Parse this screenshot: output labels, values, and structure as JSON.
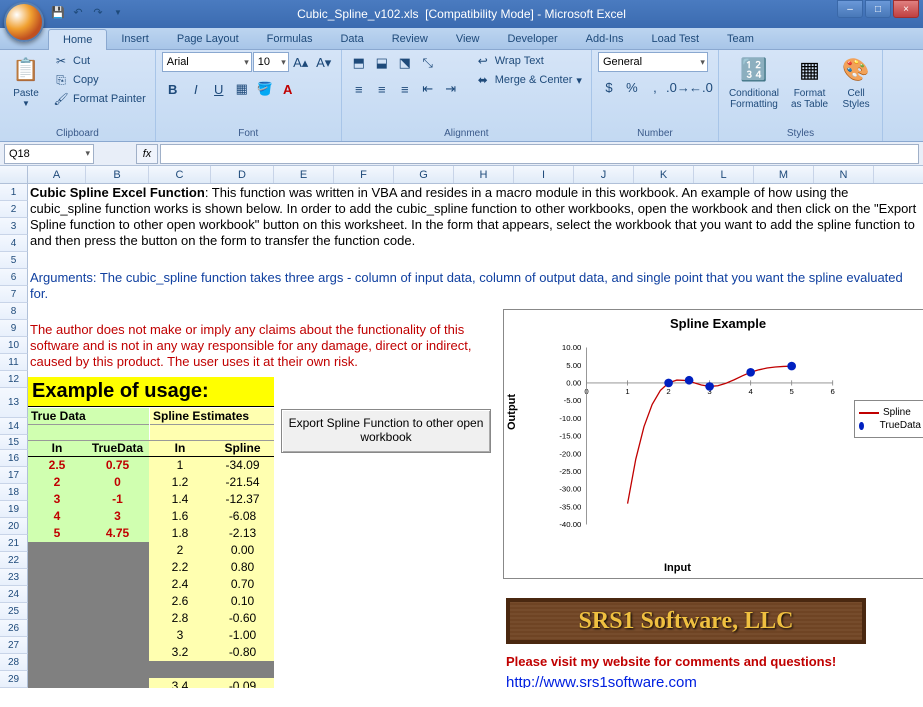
{
  "app": {
    "title_file": "Cubic_Spline_v102.xls",
    "title_mode": "[Compatibility Mode]",
    "title_app": "Microsoft Excel"
  },
  "tabs": [
    "Home",
    "Insert",
    "Page Layout",
    "Formulas",
    "Data",
    "Review",
    "View",
    "Developer",
    "Add-Ins",
    "Load Test",
    "Team"
  ],
  "active_tab": "Home",
  "clipboard": {
    "paste": "Paste",
    "cut": "Cut",
    "copy": "Copy",
    "fmt": "Format Painter",
    "group": "Clipboard"
  },
  "font": {
    "name": "Arial",
    "size": "10",
    "group": "Font"
  },
  "alignment": {
    "wrap": "Wrap Text",
    "merge": "Merge & Center",
    "group": "Alignment"
  },
  "number": {
    "format": "General",
    "group": "Number"
  },
  "styles": {
    "cond": "Conditional\nFormatting",
    "table": "Format\nas Table",
    "cell": "Cell\nStyles",
    "group": "Styles"
  },
  "namebox": "Q18",
  "formula": "",
  "columns": [
    "A",
    "B",
    "C",
    "D",
    "E",
    "F",
    "G",
    "H",
    "I",
    "J",
    "K",
    "L",
    "M",
    "N"
  ],
  "description": {
    "line1_bold": "Cubic Spline Excel Function",
    "line1_rest": ":  This function was written in VBA and resides in a macro module in this workbook.  An  example of how using the cubic_spline function works is shown below.   In order to add the cubic_spline function to other workbooks, open the workbook and then click on the \"Export Spline function to other open workbook\" button on this worksheet.  In the form that appears, select the workbook that you want to add the spline function to and then press the button on the form to transfer the function code.",
    "line2": "Arguments:  The cubic_spline function takes three args - column of input data, column of output data, and single point that you want the spline evaluated for.",
    "disclaimer": "The author does not make or imply any claims about the functionality of this software and is not in any way responsible for any damage, direct or indirect, caused by this product.  The user uses it at their own risk."
  },
  "example": {
    "title": "Example of usage:",
    "true_hdr": "True Data",
    "spline_hdr": "Spline Estimates",
    "sub": {
      "in": "In",
      "td": "TrueData",
      "in2": "In",
      "sp": "Spline"
    },
    "true_data": [
      {
        "in": "2.5",
        "td": "0.75"
      },
      {
        "in": "2",
        "td": "0"
      },
      {
        "in": "3",
        "td": "-1"
      },
      {
        "in": "4",
        "td": "3"
      },
      {
        "in": "5",
        "td": "4.75"
      }
    ],
    "spline_data": [
      {
        "in": "1",
        "sp": "-34.09"
      },
      {
        "in": "1.2",
        "sp": "-21.54"
      },
      {
        "in": "1.4",
        "sp": "-12.37"
      },
      {
        "in": "1.6",
        "sp": "-6.08"
      },
      {
        "in": "1.8",
        "sp": "-2.13"
      },
      {
        "in": "2",
        "sp": "0.00"
      },
      {
        "in": "2.2",
        "sp": "0.80"
      },
      {
        "in": "2.4",
        "sp": "0.70"
      },
      {
        "in": "2.6",
        "sp": "0.10"
      },
      {
        "in": "2.8",
        "sp": "-0.60"
      },
      {
        "in": "3",
        "sp": "-1.00"
      },
      {
        "in": "3.2",
        "sp": "-0.80"
      },
      {
        "in": "",
        "sp": ""
      },
      {
        "in": "3.4",
        "sp": "-0.09"
      }
    ],
    "export_btn": "Export Spline Function to other open workbook"
  },
  "chart": {
    "title": "Spline Example",
    "ylabel": "Output",
    "xlabel": "Input",
    "x_ticks": [
      0,
      1,
      2,
      3,
      4,
      5,
      6
    ],
    "y_ticks": [
      10,
      5,
      0,
      -5,
      -10,
      -15,
      -20,
      -25,
      -30,
      -35,
      -40
    ],
    "xlim": [
      0,
      6
    ],
    "ylim": [
      -40,
      10
    ],
    "spline_color": "#c00000",
    "truedata_color": "#0020c0",
    "bg": "#ffffff",
    "grid_color": "#c0c0c0",
    "spline_series": [
      [
        1,
        -34.09
      ],
      [
        1.2,
        -21.54
      ],
      [
        1.4,
        -12.37
      ],
      [
        1.6,
        -6.08
      ],
      [
        1.8,
        -2.13
      ],
      [
        2,
        0
      ],
      [
        2.2,
        0.8
      ],
      [
        2.4,
        0.7
      ],
      [
        2.6,
        0.1
      ],
      [
        2.8,
        -0.6
      ],
      [
        3,
        -1
      ],
      [
        3.2,
        -0.8
      ],
      [
        3.4,
        -0.09
      ],
      [
        3.6,
        0.9
      ],
      [
        3.8,
        2
      ],
      [
        4,
        3
      ],
      [
        4.2,
        3.7
      ],
      [
        4.4,
        4.2
      ],
      [
        4.6,
        4.5
      ],
      [
        4.8,
        4.65
      ],
      [
        5,
        4.75
      ]
    ],
    "truedata_series": [
      [
        2,
        0
      ],
      [
        2.5,
        0.75
      ],
      [
        3,
        -1
      ],
      [
        4,
        3
      ],
      [
        5,
        4.75
      ]
    ],
    "legend": {
      "s1": "Spline",
      "s2": "TrueData"
    }
  },
  "logo": "SRS1 Software, LLC",
  "visit": "Please visit my website for comments and questions!",
  "link": "http://www.srs1software.com"
}
